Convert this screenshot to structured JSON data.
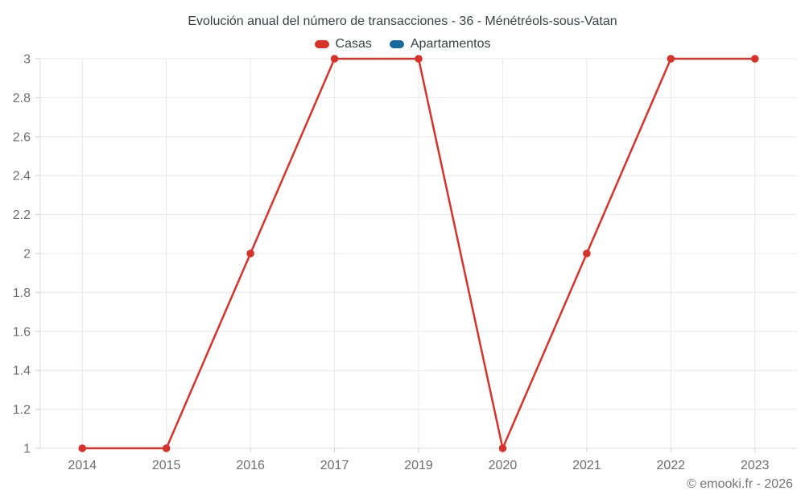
{
  "title": "Evolución anual del número de transacciones - 36 - Ménétréols-sous-Vatan",
  "legend": {
    "items": [
      {
        "label": "Casas",
        "color": "#d8332b"
      },
      {
        "label": "Apartamentos",
        "color": "#17699e"
      }
    ]
  },
  "footer": {
    "credit": "© emooki.fr - 2026"
  },
  "chart_data": {
    "type": "line",
    "title": "Evolución anual del número de transacciones - 36 - Ménétréols-sous-Vatan",
    "categories": [
      "2014",
      "2015",
      "2016",
      "2017",
      "2019",
      "2020",
      "2021",
      "2022",
      "2023"
    ],
    "series": [
      {
        "name": "Casas",
        "color": "#d8332b",
        "values": [
          1,
          1,
          2,
          3,
          3,
          1,
          2,
          3,
          3
        ]
      },
      {
        "name": "Apartamentos",
        "color": "#17699e",
        "values": []
      }
    ],
    "xlabel": "",
    "ylabel": "",
    "y_axis": {
      "min": 1,
      "max": 3,
      "tick_step": 0.2,
      "tick_labels": [
        "1",
        "1.2",
        "1.4",
        "1.6",
        "1.8",
        "2",
        "2.2",
        "2.4",
        "2.6",
        "2.8",
        "3"
      ]
    },
    "grid": true,
    "legend_position": "top"
  }
}
